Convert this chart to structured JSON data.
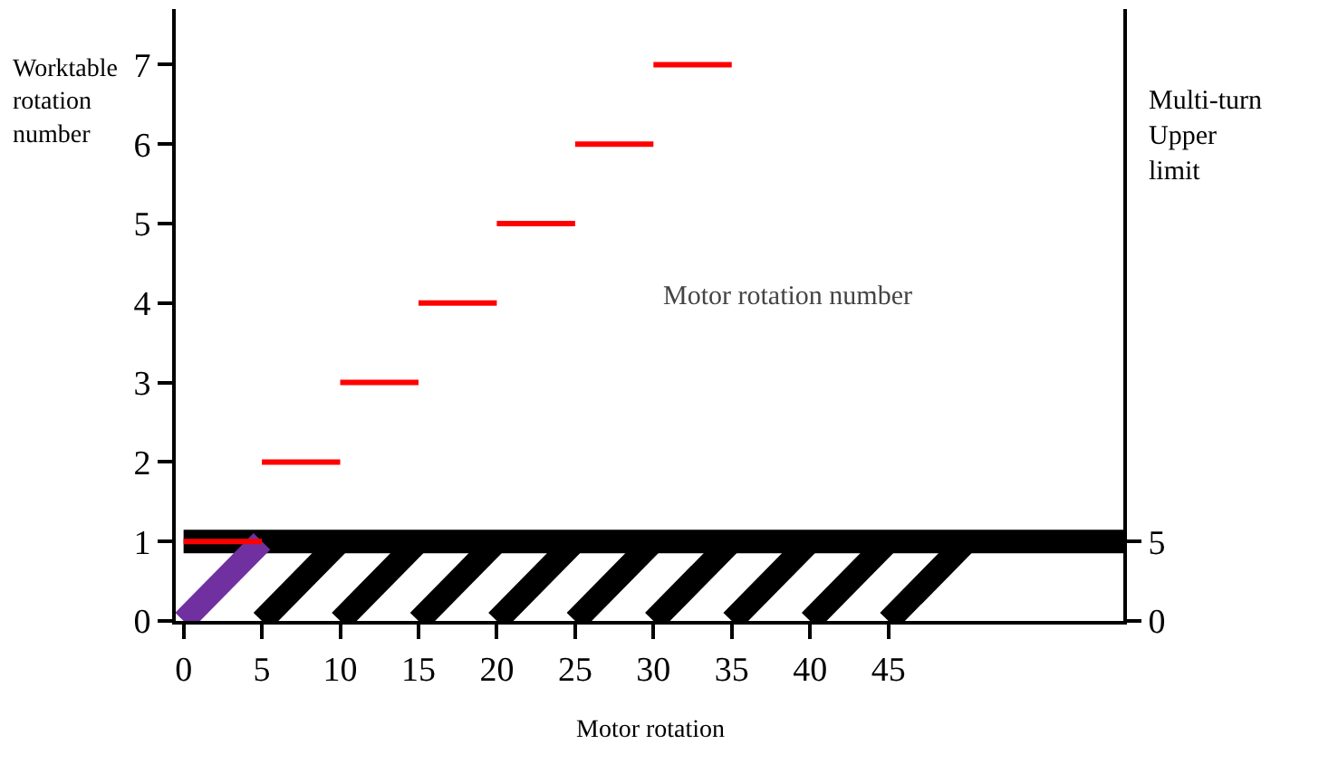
{
  "chart_data": {
    "type": "line",
    "xlabel": "Motor rotation",
    "ylabel": "Worktable rotation number",
    "y2label": "Multi-turn Upper limit",
    "annotations": [
      "Motor rotation number"
    ],
    "xlim": [
      -0.5,
      60
    ],
    "xticks": [
      0,
      5,
      10,
      15,
      20,
      25,
      30,
      35,
      40,
      45
    ],
    "ylim": [
      0,
      7.7
    ],
    "yticks": [
      0,
      1,
      2,
      3,
      4,
      5,
      6,
      7
    ],
    "y2lim": [
      0,
      38.5
    ],
    "y2ticks": [
      0,
      5
    ],
    "series": [
      {
        "color": "#ff0000",
        "x": [
          0,
          5
        ],
        "values": [
          1,
          1
        ]
      },
      {
        "color": "#ff0000",
        "x": [
          5,
          10
        ],
        "values": [
          2,
          2
        ]
      },
      {
        "color": "#ff0000",
        "x": [
          10,
          15
        ],
        "values": [
          3,
          3
        ]
      },
      {
        "color": "#ff0000",
        "x": [
          15,
          20
        ],
        "values": [
          4,
          4
        ]
      },
      {
        "color": "#ff0000",
        "x": [
          20,
          25
        ],
        "values": [
          5,
          5
        ]
      },
      {
        "color": "#ff0000",
        "x": [
          25,
          30
        ],
        "values": [
          6,
          6
        ]
      },
      {
        "color": "#ff0000",
        "x": [
          30,
          35
        ],
        "values": [
          7,
          7
        ]
      },
      {
        "color": "#000000",
        "axis": "y2",
        "x": [
          0,
          60
        ],
        "values": [
          5,
          5
        ]
      },
      {
        "color": "#000000",
        "axis": "y2",
        "x": [
          5,
          10
        ],
        "values": [
          0,
          5
        ]
      },
      {
        "color": "#000000",
        "axis": "y2",
        "x": [
          10,
          15
        ],
        "values": [
          0,
          5
        ]
      },
      {
        "color": "#000000",
        "axis": "y2",
        "x": [
          15,
          20
        ],
        "values": [
          0,
          5
        ]
      },
      {
        "color": "#000000",
        "axis": "y2",
        "x": [
          20,
          25
        ],
        "values": [
          0,
          5
        ]
      },
      {
        "color": "#000000",
        "axis": "y2",
        "x": [
          25,
          30
        ],
        "values": [
          0,
          5
        ]
      },
      {
        "color": "#000000",
        "axis": "y2",
        "x": [
          30,
          35
        ],
        "values": [
          0,
          5
        ]
      },
      {
        "color": "#000000",
        "axis": "y2",
        "x": [
          35,
          40
        ],
        "values": [
          0,
          5
        ]
      },
      {
        "color": "#000000",
        "axis": "y2",
        "x": [
          40,
          45
        ],
        "values": [
          0,
          5
        ]
      },
      {
        "color": "#000000",
        "axis": "y2",
        "x": [
          45,
          50
        ],
        "values": [
          0,
          5
        ]
      },
      {
        "color": "#7030a0",
        "axis": "y2",
        "x": [
          0,
          5
        ],
        "values": [
          0,
          5
        ]
      }
    ]
  }
}
